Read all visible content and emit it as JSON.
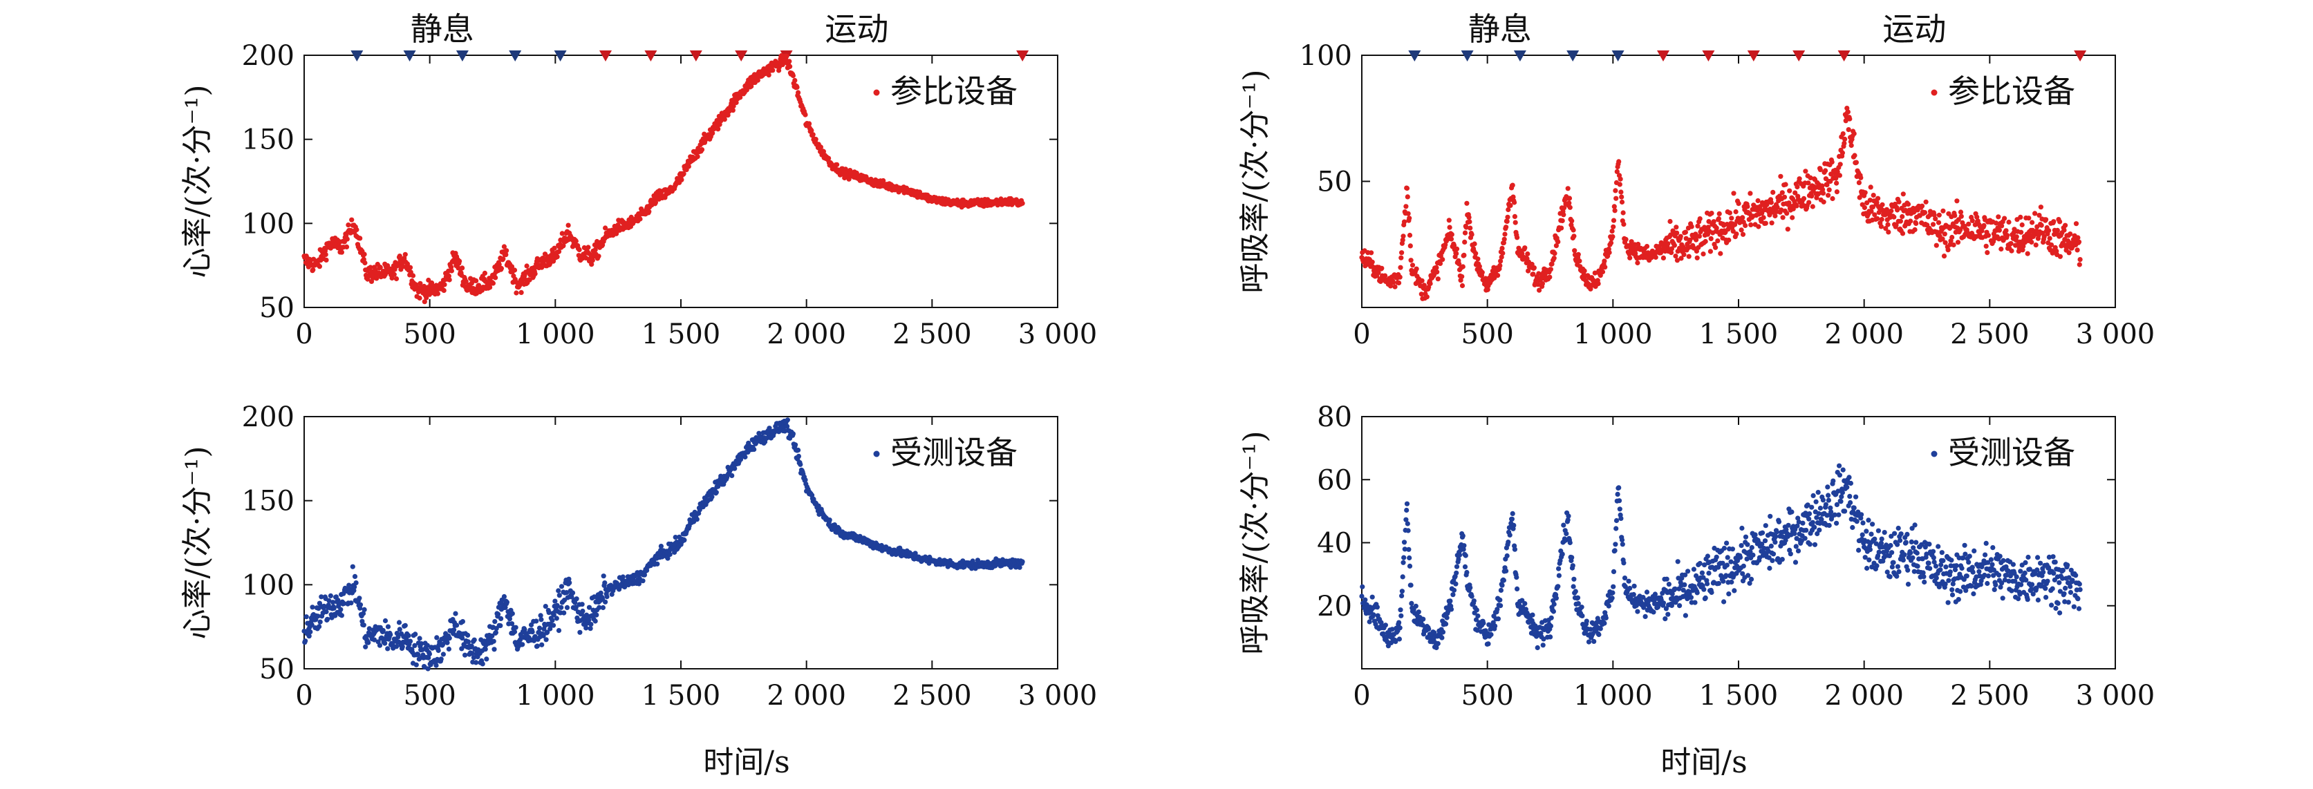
{
  "figure": {
    "xlabel_left": "时间/s",
    "xlabel_right": "时间/s"
  },
  "chart_data": [
    {
      "type": "scatter",
      "title": "",
      "panel": "top-left",
      "xlabel": "",
      "ylabel": "心率/(次·分⁻¹)",
      "xlim": [
        0,
        3000
      ],
      "ylim": [
        50,
        200
      ],
      "xticks": [
        0,
        500,
        1000,
        1500,
        2000,
        2500,
        3000
      ],
      "xtick_labels": [
        "0",
        "500",
        "1 000",
        "1 500",
        "2 000",
        "2 500",
        "3 000"
      ],
      "yticks": [
        50,
        100,
        150,
        200
      ],
      "ytick_labels": [
        "50",
        "100",
        "150",
        "200"
      ],
      "grid": false,
      "legend_position": "top-right",
      "color": "#e02020",
      "phase_labels": [
        "静息",
        "运动"
      ],
      "rest_markers_x": [
        210,
        420,
        630,
        840,
        1020
      ],
      "exercise_markers_x": [
        1200,
        1380,
        1560,
        1740,
        1920,
        2860
      ],
      "marker_colors": {
        "rest": "#1f3a7a",
        "exercise": "#c8191e"
      },
      "series": [
        {
          "name": "参比设备",
          "x": [
            0,
            50,
            100,
            150,
            200,
            250,
            300,
            350,
            400,
            450,
            500,
            550,
            600,
            650,
            700,
            750,
            800,
            850,
            900,
            950,
            1000,
            1050,
            1100,
            1150,
            1200,
            1250,
            1300,
            1350,
            1400,
            1450,
            1500,
            1550,
            1600,
            1650,
            1700,
            1750,
            1800,
            1850,
            1900,
            1920,
            1950,
            2000,
            2050,
            2100,
            2150,
            2200,
            2300,
            2400,
            2500,
            2600,
            2700,
            2800,
            2860
          ],
          "y": [
            78,
            75,
            88,
            86,
            100,
            70,
            71,
            70,
            80,
            60,
            60,
            62,
            80,
            62,
            63,
            66,
            82,
            63,
            70,
            78,
            80,
            95,
            82,
            80,
            92,
            98,
            100,
            105,
            115,
            118,
            127,
            140,
            150,
            160,
            170,
            180,
            187,
            192,
            196,
            198,
            185,
            160,
            145,
            135,
            130,
            128,
            123,
            120,
            114,
            112,
            112,
            113,
            112
          ]
        }
      ]
    },
    {
      "type": "scatter",
      "title": "",
      "panel": "top-right",
      "xlabel": "",
      "ylabel": "呼吸率/(次·分⁻¹)",
      "xlim": [
        0,
        3000
      ],
      "ylim": [
        0,
        100
      ],
      "xticks": [
        0,
        500,
        1000,
        1500,
        2000,
        2500,
        3000
      ],
      "xtick_labels": [
        "0",
        "500",
        "1 000",
        "1 500",
        "2 000",
        "2 500",
        "3 000"
      ],
      "yticks": [
        50,
        100
      ],
      "ytick_labels": [
        "50",
        "100"
      ],
      "grid": false,
      "legend_position": "top-right",
      "color": "#e02020",
      "phase_labels": [
        "静息",
        "运动"
      ],
      "rest_markers_x": [
        210,
        420,
        630,
        840,
        1020
      ],
      "exercise_markers_x": [
        1200,
        1380,
        1560,
        1740,
        1920,
        2860
      ],
      "marker_colors": {
        "rest": "#1f3a7a",
        "exercise": "#c8191e"
      },
      "series": [
        {
          "name": "参比设备",
          "x": [
            0,
            50,
            100,
            150,
            180,
            200,
            250,
            300,
            350,
            400,
            420,
            450,
            500,
            550,
            600,
            620,
            650,
            700,
            750,
            800,
            820,
            850,
            900,
            950,
            1000,
            1020,
            1050,
            1100,
            1150,
            1200,
            1300,
            1400,
            1500,
            1600,
            1700,
            1800,
            1900,
            1930,
            2000,
            2100,
            2200,
            2300,
            2400,
            2500,
            2600,
            2700,
            2800,
            2860
          ],
          "y": [
            20,
            16,
            10,
            12,
            48,
            15,
            6,
            15,
            30,
            12,
            40,
            20,
            8,
            16,
            50,
            22,
            20,
            10,
            16,
            38,
            45,
            22,
            10,
            12,
            30,
            58,
            25,
            22,
            20,
            24,
            25,
            30,
            35,
            38,
            42,
            48,
            53,
            78,
            40,
            36,
            38,
            30,
            32,
            30,
            28,
            32,
            26,
            24
          ]
        }
      ]
    },
    {
      "type": "scatter",
      "title": "",
      "panel": "bottom-left",
      "xlabel": "时间/s",
      "ylabel": "心率/(次·分⁻¹)",
      "xlim": [
        0,
        3000
      ],
      "ylim": [
        50,
        200
      ],
      "xticks": [
        0,
        500,
        1000,
        1500,
        2000,
        2500,
        3000
      ],
      "xtick_labels": [
        "0",
        "500",
        "1 000",
        "1 500",
        "2 000",
        "2 500",
        "3 000"
      ],
      "yticks": [
        50,
        100,
        150,
        200
      ],
      "ytick_labels": [
        "50",
        "100",
        "150",
        "200"
      ],
      "grid": false,
      "legend_position": "top-right",
      "color": "#1f3f9a",
      "series": [
        {
          "name": "受测设备",
          "x": [
            0,
            50,
            100,
            150,
            200,
            250,
            300,
            350,
            400,
            450,
            500,
            550,
            600,
            650,
            700,
            750,
            800,
            850,
            900,
            950,
            1000,
            1050,
            1100,
            1150,
            1200,
            1250,
            1300,
            1350,
            1400,
            1450,
            1500,
            1550,
            1600,
            1650,
            1700,
            1750,
            1800,
            1850,
            1900,
            1920,
            1950,
            2000,
            2050,
            2100,
            2150,
            2200,
            2300,
            2400,
            2500,
            2600,
            2700,
            2800,
            2860
          ],
          "y": [
            72,
            80,
            88,
            90,
            100,
            68,
            72,
            66,
            70,
            60,
            58,
            62,
            78,
            62,
            60,
            68,
            92,
            65,
            70,
            74,
            82,
            98,
            80,
            82,
            96,
            100,
            102,
            106,
            116,
            120,
            125,
            140,
            150,
            160,
            168,
            178,
            186,
            190,
            194,
            195,
            184,
            158,
            145,
            135,
            130,
            128,
            122,
            118,
            114,
            112,
            112,
            113,
            112
          ]
        }
      ]
    },
    {
      "type": "scatter",
      "title": "",
      "panel": "bottom-right",
      "xlabel": "时间/s",
      "ylabel": "呼吸率/(次·分⁻¹)",
      "xlim": [
        0,
        3000
      ],
      "ylim": [
        0,
        80
      ],
      "xticks": [
        0,
        500,
        1000,
        1500,
        2000,
        2500,
        3000
      ],
      "xtick_labels": [
        "0",
        "500",
        "1 000",
        "1 500",
        "2 000",
        "2 500",
        "3 000"
      ],
      "yticks": [
        20,
        40,
        60,
        80
      ],
      "ytick_labels": [
        "20",
        "40",
        "60",
        "80"
      ],
      "grid": false,
      "legend_position": "top-right",
      "color": "#1f3f9a",
      "series": [
        {
          "name": "受测设备",
          "x": [
            0,
            50,
            100,
            150,
            180,
            200,
            250,
            300,
            350,
            400,
            420,
            450,
            500,
            550,
            600,
            620,
            650,
            700,
            750,
            800,
            820,
            850,
            900,
            950,
            1000,
            1020,
            1050,
            1100,
            1150,
            1200,
            1300,
            1400,
            1500,
            1600,
            1700,
            1800,
            1900,
            1930,
            2000,
            2100,
            2200,
            2300,
            2400,
            2500,
            2600,
            2700,
            2800,
            2860
          ],
          "y": [
            22,
            18,
            10,
            12,
            52,
            18,
            14,
            8,
            20,
            42,
            28,
            18,
            10,
            20,
            50,
            22,
            18,
            10,
            14,
            40,
            48,
            22,
            12,
            14,
            24,
            60,
            24,
            22,
            20,
            22,
            24,
            30,
            34,
            38,
            42,
            48,
            55,
            58,
            40,
            35,
            38,
            30,
            30,
            32,
            28,
            30,
            28,
            24
          ]
        }
      ]
    }
  ]
}
